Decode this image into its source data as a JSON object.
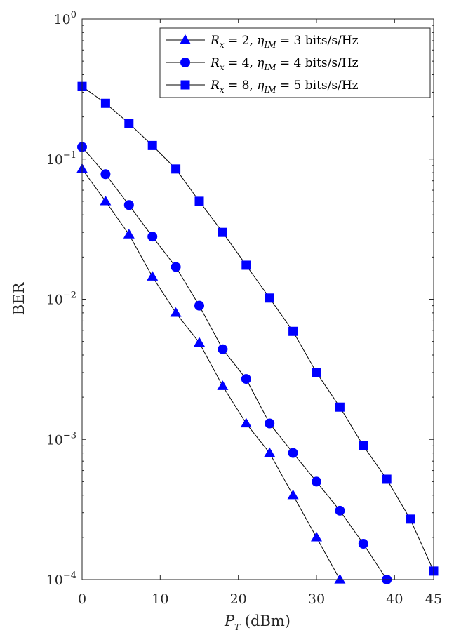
{
  "chart_data": {
    "type": "line",
    "xlabel": "P_T (dBm)",
    "ylabel": "BER",
    "xlim": [
      0,
      45
    ],
    "ylim": [
      0.0001,
      1
    ],
    "yscale": "log",
    "xticks": [
      0,
      10,
      20,
      30,
      40,
      45
    ],
    "yticks": [
      0.0001,
      0.001,
      0.01,
      0.1,
      1
    ],
    "ytick_labels": [
      {
        "base": "10",
        "exp": "−4"
      },
      {
        "base": "10",
        "exp": "−3"
      },
      {
        "base": "10",
        "exp": "−2"
      },
      {
        "base": "10",
        "exp": "−1"
      },
      {
        "base": "10",
        "exp": "0"
      }
    ],
    "legend_position": "top-right",
    "grid": false,
    "series": [
      {
        "name": "R_x = 2, η_IM = 3 bits/s/Hz",
        "legend": {
          "var": "R",
          "var_sub": "x",
          "eq1": " = 2, ",
          "eta": "η",
          "eta_sub": "IM",
          "eq2": " = 3 bits/s/Hz"
        },
        "marker": "triangle",
        "color": "#0000ff",
        "x": [
          0,
          3,
          6,
          9,
          12,
          15,
          18,
          21,
          24,
          27,
          30,
          33
        ],
        "y": [
          0.085,
          0.05,
          0.029,
          0.0145,
          0.008,
          0.0049,
          0.0024,
          0.0013,
          0.0008,
          0.0004,
          0.0002,
          0.0001
        ]
      },
      {
        "name": "R_x = 4, η_IM = 4 bits/s/Hz",
        "legend": {
          "var": "R",
          "var_sub": "x",
          "eq1": " = 4, ",
          "eta": "η",
          "eta_sub": "IM",
          "eq2": " = 4 bits/s/Hz"
        },
        "marker": "circle",
        "color": "#0000ff",
        "x": [
          0,
          3,
          6,
          9,
          12,
          15,
          18,
          21,
          24,
          27,
          30,
          33,
          36,
          39
        ],
        "y": [
          0.122,
          0.078,
          0.047,
          0.028,
          0.017,
          0.009,
          0.0044,
          0.0027,
          0.0013,
          0.0008,
          0.0005,
          0.00031,
          0.00018,
          0.0001
        ]
      },
      {
        "name": "R_x = 8, η_IM = 5 bits/s/Hz",
        "legend": {
          "var": "R",
          "var_sub": "x",
          "eq1": " = 8, ",
          "eta": "η",
          "eta_sub": "IM",
          "eq2": " = 5 bits/s/Hz"
        },
        "marker": "square",
        "color": "#0000ff",
        "x": [
          0,
          3,
          6,
          9,
          12,
          15,
          18,
          21,
          24,
          27,
          30,
          33,
          36,
          39,
          42,
          45
        ],
        "y": [
          0.33,
          0.25,
          0.18,
          0.125,
          0.085,
          0.05,
          0.03,
          0.0175,
          0.0102,
          0.0059,
          0.003,
          0.0017,
          0.0009,
          0.00052,
          0.00027,
          0.000115
        ]
      }
    ]
  }
}
